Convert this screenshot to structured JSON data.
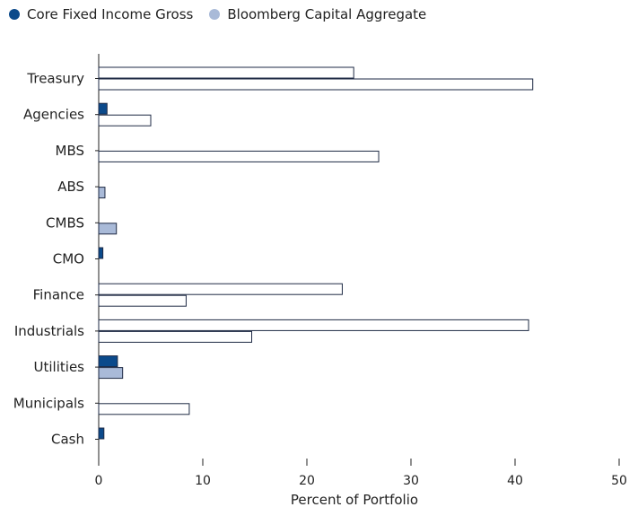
{
  "chart_data": {
    "type": "bar",
    "orientation": "horizontal",
    "categories": [
      "Treasury",
      "Agencies",
      "MBS",
      "ABS",
      "CMBS",
      "CMO",
      "Finance",
      "Industrials",
      "Utilities",
      "Municipals",
      "Cash"
    ],
    "series": [
      {
        "name": "Core Fixed Income Gross",
        "color": "#0b4a8b",
        "values": [
          24.5,
          0.8,
          0,
          0,
          0,
          0.4,
          23.4,
          41.3,
          1.8,
          0,
          0.5
        ]
      },
      {
        "name": "Bloomberg Capital Aggregate",
        "color": "#a9bad8",
        "values": [
          41.7,
          5.0,
          26.9,
          0.6,
          1.7,
          0,
          8.4,
          14.7,
          2.3,
          8.7,
          0
        ]
      }
    ],
    "xlabel": "Percent of Portfolio",
    "ylabel": "",
    "xlim": [
      0,
      50
    ],
    "xticks": [
      "0",
      "10",
      "20",
      "30",
      "40",
      "50"
    ],
    "grid": false,
    "legend_position": "top-left"
  }
}
